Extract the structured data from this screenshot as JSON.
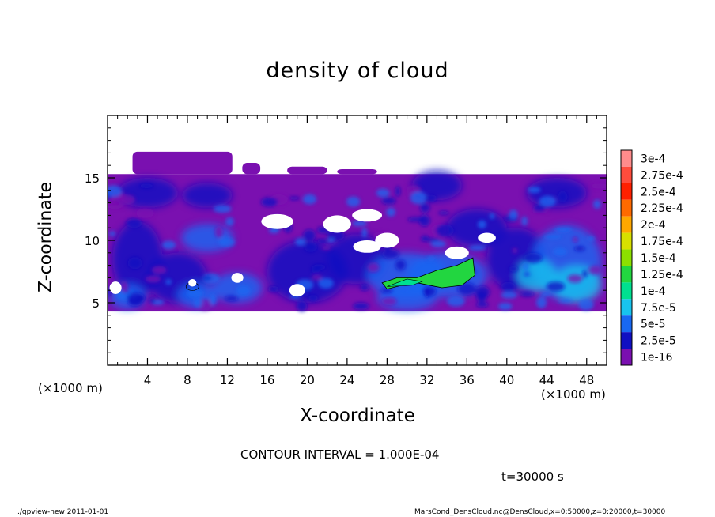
{
  "chart_data": {
    "type": "heatmap",
    "title": "density of cloud",
    "xlabel": "X-coordinate",
    "ylabel": "Z-coordinate",
    "x_unit": "(×1000 m)",
    "xlim": [
      0,
      50
    ],
    "ylim": [
      0,
      20
    ],
    "x_ticks": [
      "4",
      "8",
      "12",
      "16",
      "20",
      "24",
      "28",
      "32",
      "36",
      "40",
      "44",
      "48"
    ],
    "y_ticks": [
      "5",
      "10",
      "15"
    ],
    "x_tick_values": [
      4,
      8,
      12,
      16,
      20,
      24,
      28,
      32,
      36,
      40,
      44,
      48
    ],
    "y_tick_values": [
      5,
      10,
      15
    ],
    "colorbar": {
      "labels": [
        "3e-4",
        "2.75e-4",
        "2.5e-4",
        "2.25e-4",
        "2e-4",
        "1.75e-4",
        "1.5e-4",
        "1.25e-4",
        "1e-4",
        "7.5e-5",
        "5e-5",
        "2.5e-5",
        "1e-16"
      ],
      "colors": [
        "#ff8c8c",
        "#ff4c3c",
        "#ff2000",
        "#ff6a00",
        "#ffa800",
        "#d8e000",
        "#8ce000",
        "#22d640",
        "#00e090",
        "#18c4ee",
        "#1868f2",
        "#1010c2",
        "#7a10b0"
      ]
    },
    "regions": {
      "cloud_layer": {
        "x": [
          0,
          50
        ],
        "z": [
          4.3,
          15.3
        ],
        "level": "1e-16"
      },
      "upper_patches": [
        {
          "x": [
            2.5,
            12.5
          ],
          "z": [
            15.3,
            17.1
          ]
        },
        {
          "x": [
            13.5,
            15.3
          ],
          "z": [
            15.3,
            16.2
          ]
        },
        {
          "x": [
            18.0,
            22.0
          ],
          "z": [
            15.3,
            15.9
          ]
        },
        {
          "x": [
            23.0,
            27.0
          ],
          "z": [
            15.3,
            15.7
          ]
        }
      ],
      "max_region": {
        "x": [
          27,
          37
        ],
        "z": [
          6,
          8.5
        ],
        "approx_max": "1.5e-4"
      }
    }
  },
  "contour_interval": "CONTOUR INTERVAL = 1.000E-04",
  "time_label": "t=30000 s",
  "footer": {
    "left": "./gpview-new   2011-01-01",
    "right": "MarsCond_DensCloud.nc@DensCloud,x=0:50000,z=0:20000,t=30000"
  }
}
